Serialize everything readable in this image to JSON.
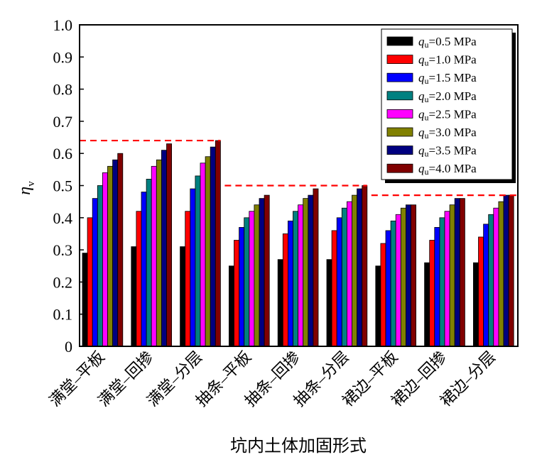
{
  "chart_data": {
    "type": "bar",
    "title": "",
    "xlabel": "坑内土体加固形式",
    "ylabel": "η",
    "ylabel_subscript": "v",
    "ylim": [
      0,
      1.0
    ],
    "yticks": [
      "0",
      "0.1",
      "0.2",
      "0.3",
      "0.4",
      "0.5",
      "0.6",
      "0.7",
      "0.8",
      "0.9",
      "1.0"
    ],
    "ytick_values": [
      0,
      0.1,
      0.2,
      0.3,
      0.4,
      0.5,
      0.6,
      0.7,
      0.8,
      0.9,
      1.0
    ],
    "grid": false,
    "legend_position": "top-right",
    "categories": [
      "满堂–平板",
      "满堂–回掺",
      "满堂–分层",
      "抽条–平板",
      "抽条–回掺",
      "抽条–分层",
      "裙边–平板",
      "裙边–回掺",
      "裙边–分层"
    ],
    "series": [
      {
        "name": "q_u=0.5 MPa",
        "symbol": "q",
        "subscript": "u",
        "label": "=0.5 MPa",
        "color": "#000000",
        "values": [
          0.29,
          0.31,
          0.31,
          0.25,
          0.27,
          0.27,
          0.25,
          0.26,
          0.26
        ]
      },
      {
        "name": "q_u=1.0 MPa",
        "symbol": "q",
        "subscript": "u",
        "label": "=1.0 MPa",
        "color": "#ff0000",
        "values": [
          0.4,
          0.42,
          0.42,
          0.33,
          0.35,
          0.36,
          0.32,
          0.33,
          0.34
        ]
      },
      {
        "name": "q_u=1.5 MPa",
        "symbol": "q",
        "subscript": "u",
        "label": "=1.5 MPa",
        "color": "#0000ff",
        "values": [
          0.46,
          0.48,
          0.49,
          0.37,
          0.39,
          0.4,
          0.36,
          0.37,
          0.38
        ]
      },
      {
        "name": "q_u=2.0 MPa",
        "symbol": "q",
        "subscript": "u",
        "label": "=2.0 MPa",
        "color": "#008080",
        "values": [
          0.5,
          0.52,
          0.53,
          0.4,
          0.42,
          0.43,
          0.39,
          0.4,
          0.41
        ]
      },
      {
        "name": "q_u=2.5 MPa",
        "symbol": "q",
        "subscript": "u",
        "label": "=2.5 MPa",
        "color": "#ff00ff",
        "values": [
          0.54,
          0.56,
          0.57,
          0.42,
          0.44,
          0.45,
          0.41,
          0.42,
          0.43
        ]
      },
      {
        "name": "q_u=3.0 MPa",
        "symbol": "q",
        "subscript": "u",
        "label": "=3.0 MPa",
        "color": "#808000",
        "values": [
          0.56,
          0.58,
          0.59,
          0.44,
          0.46,
          0.47,
          0.43,
          0.44,
          0.45
        ]
      },
      {
        "name": "q_u=3.5 MPa",
        "symbol": "q",
        "subscript": "u",
        "label": "=3.5 MPa",
        "color": "#000080",
        "values": [
          0.58,
          0.61,
          0.62,
          0.46,
          0.47,
          0.49,
          0.44,
          0.46,
          0.47
        ]
      },
      {
        "name": "q_u=4.0 MPa",
        "symbol": "q",
        "subscript": "u",
        "label": "=4.0 MPa",
        "color": "#800000",
        "values": [
          0.6,
          0.63,
          0.64,
          0.47,
          0.49,
          0.5,
          0.44,
          0.46,
          0.47
        ]
      }
    ],
    "reference_lines": [
      {
        "value": 0.64,
        "from_category": 0,
        "to_category": 2,
        "color": "#ff0000",
        "style": "dashed"
      },
      {
        "value": 0.5,
        "from_category": 3,
        "to_category": 5,
        "color": "#ff0000",
        "style": "dashed"
      },
      {
        "value": 0.47,
        "from_category": 6,
        "to_category": 8,
        "color": "#ff0000",
        "style": "dashed"
      }
    ]
  }
}
